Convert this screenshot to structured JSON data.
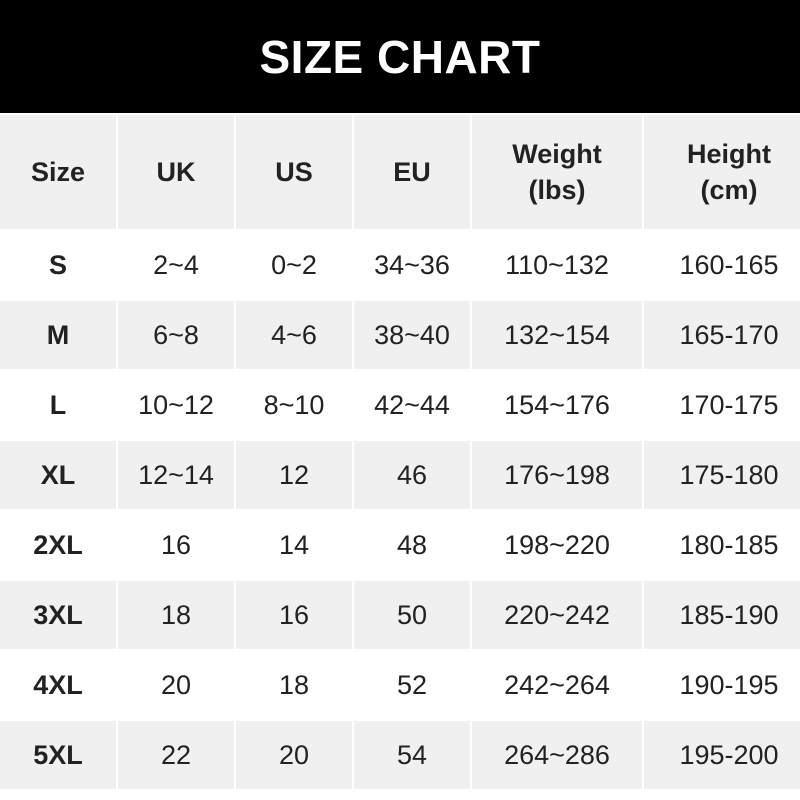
{
  "title": "SIZE CHART",
  "headers": [
    [
      "Size",
      ""
    ],
    [
      "UK",
      ""
    ],
    [
      "US",
      ""
    ],
    [
      "EU",
      ""
    ],
    [
      "Weight",
      "(lbs)"
    ],
    [
      "Height",
      "(cm)"
    ]
  ],
  "rows": [
    [
      "S",
      "2~4",
      "0~2",
      "34~36",
      "110~132",
      "160-165"
    ],
    [
      "M",
      "6~8",
      "4~6",
      "38~40",
      "132~154",
      "165-170"
    ],
    [
      "L",
      "10~12",
      "8~10",
      "42~44",
      "154~176",
      "170-175"
    ],
    [
      "XL",
      "12~14",
      "12",
      "46",
      "176~198",
      "175-180"
    ],
    [
      "2XL",
      "16",
      "14",
      "48",
      "198~220",
      "180-185"
    ],
    [
      "3XL",
      "18",
      "16",
      "50",
      "220~242",
      "185-190"
    ],
    [
      "4XL",
      "20",
      "18",
      "52",
      "242~264",
      "190-195"
    ],
    [
      "5XL",
      "22",
      "20",
      "54",
      "264~286",
      "195-200"
    ]
  ]
}
